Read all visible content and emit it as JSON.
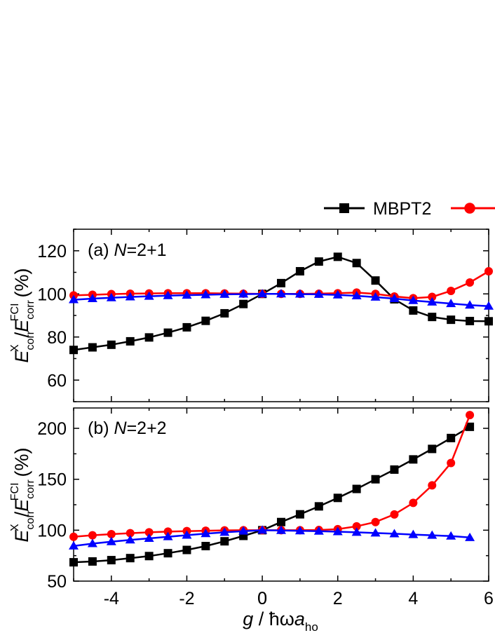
{
  "legend": {
    "entries": [
      {
        "label": "MBPT2",
        "marker": "square",
        "color": "#000000"
      },
      {
        "label": "",
        "marker": "circle",
        "color": "#ff0000"
      }
    ]
  },
  "xaxis": {
    "label_main": "g / ħωa",
    "label_sub": "ho",
    "range": [
      -5,
      6
    ],
    "ticks": [
      -4,
      -2,
      0,
      2,
      4,
      6
    ]
  },
  "ylabel": {
    "e": "E",
    "sup1": "X",
    "sub1": "corr",
    "slash": "/",
    "sup2": "FCI",
    "sub2": "corr",
    "unit": "(%)"
  },
  "chart_data": [
    {
      "type": "line",
      "panel_label_prefix": "(a) ",
      "panel_label_n": "N",
      "panel_label_value": "=2+1",
      "ylim": [
        50,
        130
      ],
      "yticks": [
        60,
        80,
        100,
        120
      ],
      "x": [
        -5,
        -4.5,
        -4,
        -3.5,
        -3,
        -2.5,
        -2,
        -1.5,
        -1,
        -0.5,
        0,
        0.5,
        1,
        1.5,
        2,
        2.5,
        3,
        3.5,
        4,
        4.5,
        5,
        5.5,
        6
      ],
      "series": [
        {
          "name": "MBPT2",
          "color": "#000000",
          "marker": "square",
          "values": [
            74,
            75.2,
            76.4,
            78,
            79.8,
            82,
            84.5,
            87.5,
            91,
            95.3,
            100,
            105,
            110.5,
            115,
            117.2,
            114.3,
            106.2,
            97.5,
            92.3,
            89.3,
            88,
            87.4,
            87.3
          ]
        },
        {
          "name": "",
          "color": "#ff0000",
          "marker": "circle",
          "values": [
            99.3,
            99.6,
            99.9,
            100.1,
            100.2,
            100.3,
            100.3,
            100.3,
            100.2,
            100.1,
            100,
            100,
            100,
            100.1,
            100.3,
            100.6,
            100,
            98.8,
            98,
            98.6,
            101.4,
            105.3,
            110.5
          ]
        },
        {
          "name": "",
          "color": "#0000ff",
          "marker": "triangle",
          "values": [
            97.3,
            97.8,
            98.2,
            98.6,
            98.9,
            99.2,
            99.4,
            99.6,
            99.8,
            99.9,
            100,
            100,
            99.9,
            99.8,
            99.5,
            99.1,
            98.5,
            97.8,
            96.9,
            96.2,
            95.5,
            94.8,
            94.3
          ]
        }
      ]
    },
    {
      "type": "line",
      "panel_label_prefix": "(b) ",
      "panel_label_n": "N",
      "panel_label_value": "=2+2",
      "ylim": [
        50,
        220
      ],
      "yticks": [
        50,
        100,
        150,
        200
      ],
      "x": [
        -5,
        -4.5,
        -4,
        -3.5,
        -3,
        -2.5,
        -2,
        -1.5,
        -1,
        -0.5,
        0,
        0.5,
        1,
        1.5,
        2,
        2.5,
        3,
        3.5,
        4,
        4.5,
        5,
        5.5
      ],
      "series": [
        {
          "name": "MBPT2",
          "color": "#000000",
          "marker": "square",
          "values": [
            68.5,
            69.3,
            70.6,
            72.6,
            74.6,
            77.4,
            80.6,
            84.4,
            89.1,
            94.4,
            100,
            108,
            115.6,
            123.4,
            131.7,
            140.5,
            150,
            159.5,
            169.5,
            179.8,
            190.5,
            201.5
          ]
        },
        {
          "name": "",
          "color": "#ff0000",
          "marker": "circle",
          "values": [
            93.5,
            95,
            96.1,
            97.1,
            97.9,
            98.6,
            99.1,
            99.5,
            99.8,
            100,
            100,
            100,
            100,
            100.2,
            101,
            103.8,
            108,
            115.5,
            126.8,
            144,
            166,
            213
          ]
        },
        {
          "name": "",
          "color": "#0000ff",
          "marker": "triangle",
          "values": [
            84.5,
            86.8,
            88.7,
            90.4,
            92,
            93.6,
            95.1,
            96.6,
            97.9,
            99.1,
            100,
            99.7,
            99.4,
            99,
            98.5,
            97.9,
            97.2,
            96.5,
            95.7,
            95,
            94.2,
            92.8
          ]
        }
      ]
    }
  ]
}
